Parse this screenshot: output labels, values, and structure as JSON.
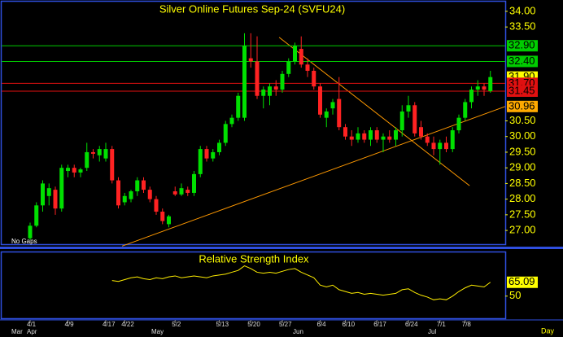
{
  "chart_data": {
    "type": "candlestick",
    "title": "Silver Online Futures Sep-24 (SVFU24)",
    "annotation": "No Gaps",
    "x_unit": "Day",
    "months": [
      "Mar",
      "Apr",
      "May",
      "Jun",
      "Jul"
    ],
    "categories": [
      "4/1",
      null,
      null,
      null,
      null,
      null,
      "4/9",
      null,
      null,
      null,
      null,
      null,
      "4/17",
      null,
      null,
      "4/22",
      null,
      null,
      null,
      null,
      null,
      null,
      null,
      "5/2",
      null,
      null,
      null,
      null,
      null,
      null,
      "5/13",
      null,
      null,
      null,
      null,
      "5/20",
      null,
      null,
      null,
      null,
      "5/27",
      null,
      null,
      null,
      null,
      null,
      "6/4",
      null,
      null,
      null,
      "6/10",
      null,
      null,
      null,
      null,
      "6/17",
      null,
      null,
      null,
      null,
      "6/24",
      null,
      null,
      null,
      null,
      "7/1",
      null,
      null,
      null,
      "7/8",
      null,
      null,
      null,
      null
    ],
    "open": [
      26.75,
      27.15,
      27.8,
      28.1,
      28.3,
      27.7,
      28.9,
      29.0,
      28.85,
      29.0,
      29.5,
      29.4,
      29.3,
      29.6,
      28.6,
      27.9,
      28.0,
      28.25,
      28.6,
      28.3,
      28.0,
      27.6,
      27.2,
      28.25,
      28.15,
      28.3,
      28.2,
      28.8,
      29.6,
      29.3,
      29.5,
      29.8,
      30.4,
      30.6,
      30.6,
      32.5,
      32.4,
      31.3,
      31.3,
      31.6,
      31.5,
      32.0,
      32.4,
      32.8,
      32.3,
      32.1,
      31.6,
      30.6,
      30.9,
      31.2,
      30.3,
      30.0,
      29.9,
      30.1,
      29.9,
      30.2,
      29.9,
      30.0,
      29.9,
      30.2,
      30.8,
      31.0,
      30.3,
      30.0,
      29.8,
      29.6,
      29.8,
      29.6,
      30.2,
      30.6,
      31.1,
      31.5,
      31.6,
      31.45
    ],
    "high": [
      27.25,
      27.9,
      28.6,
      28.5,
      28.4,
      29.1,
      29.1,
      29.1,
      29.0,
      29.8,
      29.6,
      29.7,
      29.8,
      29.7,
      28.7,
      28.2,
      28.3,
      28.7,
      28.7,
      28.4,
      28.1,
      27.7,
      27.5,
      28.4,
      28.5,
      28.4,
      28.9,
      29.7,
      29.7,
      29.6,
      29.9,
      30.5,
      30.7,
      31.4,
      33.3,
      33.3,
      33.2,
      31.6,
      31.7,
      31.8,
      32.1,
      32.5,
      33.0,
      33.2,
      32.5,
      32.2,
      31.7,
      30.9,
      31.2,
      31.9,
      30.4,
      30.2,
      30.3,
      30.2,
      30.3,
      30.3,
      30.1,
      30.2,
      30.3,
      31.0,
      31.3,
      31.1,
      30.5,
      30.1,
      30.0,
      29.9,
      30.0,
      30.3,
      30.7,
      31.2,
      31.6,
      31.8,
      31.7,
      32.1
    ],
    "low": [
      26.7,
      27.1,
      27.6,
      27.8,
      27.5,
      27.6,
      28.7,
      28.7,
      28.7,
      28.9,
      29.3,
      29.2,
      29.2,
      28.5,
      27.7,
      27.8,
      27.9,
      28.1,
      28.2,
      27.9,
      27.5,
      27.2,
      27.1,
      28.1,
      28.1,
      28.1,
      28.1,
      28.7,
      29.2,
      29.2,
      29.4,
      29.7,
      30.3,
      30.5,
      30.5,
      32.2,
      31.2,
      30.9,
      31.0,
      31.3,
      31.4,
      31.9,
      32.3,
      32.2,
      31.9,
      31.5,
      30.6,
      30.3,
      30.7,
      30.2,
      29.9,
      29.7,
      29.8,
      29.8,
      29.7,
      29.8,
      29.5,
      29.8,
      29.7,
      30.0,
      30.6,
      30.0,
      29.9,
      29.7,
      29.4,
      29.1,
      29.5,
      29.5,
      30.1,
      30.5,
      30.9,
      31.3,
      31.3,
      31.4
    ],
    "close": [
      27.15,
      27.8,
      28.5,
      28.35,
      27.7,
      29.0,
      29.0,
      28.85,
      28.95,
      29.5,
      29.45,
      29.6,
      29.6,
      28.6,
      27.8,
      28.1,
      28.25,
      28.6,
      28.3,
      28.0,
      27.6,
      27.3,
      27.45,
      28.15,
      28.35,
      28.2,
      28.8,
      29.6,
      29.3,
      29.5,
      29.8,
      30.4,
      30.6,
      31.3,
      32.9,
      32.4,
      31.3,
      31.5,
      31.6,
      31.5,
      32.0,
      32.4,
      32.9,
      32.3,
      32.1,
      31.6,
      30.7,
      30.8,
      31.1,
      30.3,
      30.0,
      29.9,
      30.1,
      29.9,
      30.2,
      29.9,
      30.0,
      29.9,
      30.2,
      30.8,
      31.0,
      30.1,
      30.0,
      29.8,
      29.6,
      29.8,
      29.6,
      30.2,
      30.6,
      31.1,
      31.5,
      31.6,
      31.5,
      31.9
    ],
    "up_color": "#00e000",
    "down_color": "#ff2222",
    "ylim": [
      26.56,
      34.31
    ],
    "yticks": [
      {
        "value": 34,
        "label": "34.00"
      },
      {
        "value": 33.5,
        "label": "33.50"
      },
      {
        "value": 30.5,
        "label": "30.50"
      },
      {
        "value": 30,
        "label": "30.00"
      },
      {
        "value": 29.5,
        "label": "29.50"
      },
      {
        "value": 29,
        "label": "29.00"
      },
      {
        "value": 28.5,
        "label": "28.50"
      },
      {
        "value": 28,
        "label": "28.00"
      },
      {
        "value": 27.5,
        "label": "27.50"
      },
      {
        "value": 27,
        "label": "27.00"
      }
    ],
    "levels": [
      {
        "value": 32.9,
        "label": "32.90",
        "color": "#00cc00",
        "line": true
      },
      {
        "value": 32.4,
        "label": "32.40",
        "color": "#00cc00",
        "line": true
      },
      {
        "value": 31.9,
        "label": "31.90",
        "color": "#ffff00",
        "line": false
      },
      {
        "value": 31.7,
        "label": "31.70",
        "color": "#e01010",
        "line": true
      },
      {
        "value": 31.45,
        "label": "31.45",
        "color": "#e01010",
        "line": true
      },
      {
        "value": 30.96,
        "label": "30.96",
        "color": "#ffaa00",
        "line": false
      }
    ],
    "trendlines": [
      {
        "color": "#ff9900",
        "x": [
          14.6,
          75.5
        ],
        "y": [
          26.5,
          30.96
        ]
      },
      {
        "color": "#ff9900",
        "x": [
          39.5,
          69.7
        ],
        "y": [
          33.17,
          28.43
        ]
      }
    ],
    "indicator": {
      "title": "Relative Strength Index",
      "color": "#ffee00",
      "ylim": [
        25,
        95
      ],
      "yticks": [
        50
      ],
      "values": [
        null,
        null,
        null,
        null,
        null,
        null,
        null,
        null,
        null,
        null,
        null,
        null,
        null,
        67,
        66,
        68,
        70,
        71,
        69,
        68,
        70,
        69,
        71,
        72,
        70,
        71,
        72,
        71,
        70,
        72,
        73,
        74,
        76,
        78,
        83,
        80,
        76,
        75,
        76,
        75,
        77,
        79,
        80,
        76,
        73,
        70,
        62,
        60,
        62,
        57,
        55,
        53,
        54,
        52,
        53,
        52,
        51,
        52,
        53,
        57,
        58,
        54,
        51,
        49,
        46,
        47,
        46,
        50,
        55,
        59,
        62,
        61,
        60,
        65.09
      ],
      "last_label": {
        "value": 65.09,
        "label": "65.09"
      }
    }
  }
}
